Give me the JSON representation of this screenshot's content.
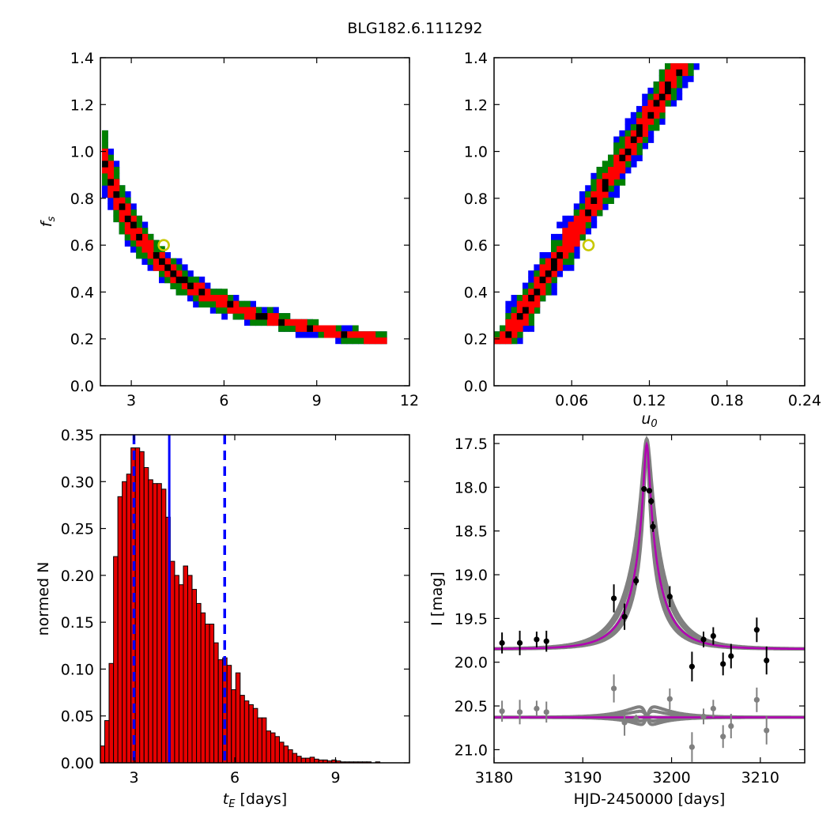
{
  "figure_title": "BLG182.6.111292",
  "colors": {
    "blue": "#0000ff",
    "green": "#008000",
    "red": "#ff0000",
    "black": "#000000",
    "marker": "#c8c800",
    "gray": "#808080",
    "magenta": "#b300b3",
    "bar": "#e60000"
  },
  "chart_data": [
    {
      "type": "heatmap",
      "panel": "top-left",
      "title": "",
      "xlabel": "",
      "ylabel": "f_s",
      "xlim": [
        2,
        12
      ],
      "ylim": [
        0,
        1.4
      ],
      "xticks": [
        "3",
        "6",
        "9",
        "12"
      ],
      "yticks": [
        "0.0",
        "0.2",
        "0.4",
        "0.6",
        "0.8",
        "1.0",
        "1.2",
        "1.4"
      ],
      "relation": "f_s ≈ 1.9 / t_E^0.97 (confidence regions)",
      "regions": [
        "blue",
        "green",
        "red",
        "black"
      ],
      "best_fit": {
        "x": 4.05,
        "y": 0.6
      }
    },
    {
      "type": "heatmap",
      "panel": "top-right",
      "title": "",
      "xlabel": "u_0",
      "ylabel": "",
      "xlim": [
        0,
        0.24
      ],
      "ylim": [
        0,
        1.4
      ],
      "xticks": [
        "0.06",
        "0.12",
        "0.18",
        "0.24"
      ],
      "yticks": [
        "0.0",
        "0.2",
        "0.4",
        "0.6",
        "0.8",
        "1.0",
        "1.2",
        "1.4"
      ],
      "relation": "f_s ≈ 0.13 + 8.6 u_0 (confidence regions)",
      "regions": [
        "blue",
        "green",
        "red",
        "black"
      ],
      "best_fit": {
        "x": 0.073,
        "y": 0.6
      }
    },
    {
      "type": "bar",
      "panel": "bottom-left",
      "title": "",
      "xlabel": "t_E [days]",
      "ylabel": "normed N",
      "xlim": [
        2,
        11.2
      ],
      "ylim": [
        0,
        0.35
      ],
      "xticks": [
        "3",
        "6",
        "9"
      ],
      "yticks": [
        "0.00",
        "0.05",
        "0.10",
        "0.15",
        "0.20",
        "0.25",
        "0.30",
        "0.35"
      ],
      "bin_width": 0.13,
      "bin_start": 2.0,
      "values": [
        0.018,
        0.045,
        0.106,
        0.22,
        0.284,
        0.3,
        0.308,
        0.336,
        0.336,
        0.332,
        0.315,
        0.302,
        0.298,
        0.298,
        0.292,
        0.262,
        0.215,
        0.2,
        0.19,
        0.21,
        0.2,
        0.185,
        0.17,
        0.16,
        0.148,
        0.148,
        0.128,
        0.11,
        0.112,
        0.104,
        0.078,
        0.096,
        0.072,
        0.066,
        0.062,
        0.058,
        0.048,
        0.048,
        0.034,
        0.032,
        0.028,
        0.022,
        0.018,
        0.014,
        0.01,
        0.007,
        0.005,
        0.005,
        0.006,
        0.004,
        0.003,
        0.003,
        0.002,
        0.003,
        0.002,
        0.001,
        0.001,
        0.001,
        0.001,
        0.001,
        0.001,
        0.001,
        0.0,
        0.001,
        0.0,
        0.0,
        0.0,
        0.0,
        0.0,
        0.0
      ],
      "median": 4.05,
      "interval": [
        3.0,
        5.7
      ]
    },
    {
      "type": "scatter",
      "panel": "bottom-right",
      "title": "",
      "xlabel": "HJD-2450000 [days]",
      "ylabel": "I [mag]",
      "xlim": [
        3180,
        3215
      ],
      "ylim": [
        21.15,
        17.4
      ],
      "xticks": [
        "3180",
        "3190",
        "3200",
        "3210"
      ],
      "yticks": [
        "17.5",
        "18.0",
        "18.5",
        "19.0",
        "19.5",
        "20.0",
        "20.5",
        "21.0"
      ],
      "model": {
        "t0": 3197.2,
        "tE": 4.05,
        "u0": 0.073,
        "fs": 0.6,
        "baseline": 19.85
      },
      "series": [
        {
          "points": [
            {
              "x": 3180.9,
              "y": 19.78,
              "err": 0.12
            },
            {
              "x": 3182.9,
              "y": 19.78,
              "err": 0.14
            },
            {
              "x": 3184.8,
              "y": 19.74,
              "err": 0.09
            },
            {
              "x": 3185.9,
              "y": 19.76,
              "err": 0.12
            },
            {
              "x": 3193.5,
              "y": 19.27,
              "err": 0.16
            },
            {
              "x": 3194.7,
              "y": 19.48,
              "err": 0.15
            },
            {
              "x": 3196.0,
              "y": 19.07,
              "err": 0.05
            },
            {
              "x": 3196.9,
              "y": 18.02,
              "err": 0.03
            },
            {
              "x": 3197.5,
              "y": 18.04,
              "err": 0.03
            },
            {
              "x": 3197.7,
              "y": 18.16,
              "err": 0.04
            },
            {
              "x": 3197.9,
              "y": 18.45,
              "err": 0.06
            },
            {
              "x": 3199.8,
              "y": 19.25,
              "err": 0.12
            },
            {
              "x": 3202.3,
              "y": 20.05,
              "err": 0.17
            },
            {
              "x": 3203.6,
              "y": 19.74,
              "err": 0.09
            },
            {
              "x": 3204.7,
              "y": 19.7,
              "err": 0.1
            },
            {
              "x": 3205.8,
              "y": 20.02,
              "err": 0.13
            },
            {
              "x": 3206.7,
              "y": 19.93,
              "err": 0.14
            },
            {
              "x": 3209.6,
              "y": 19.63,
              "err": 0.14
            },
            {
              "x": 3210.7,
              "y": 19.98,
              "err": 0.16
            }
          ]
        },
        {
          "points": [
            {
              "x": 3180.9,
              "y": 20.56,
              "err": 0.12
            },
            {
              "x": 3182.9,
              "y": 20.57,
              "err": 0.14
            },
            {
              "x": 3184.8,
              "y": 20.53,
              "err": 0.09
            },
            {
              "x": 3185.9,
              "y": 20.57,
              "err": 0.12
            },
            {
              "x": 3193.5,
              "y": 20.3,
              "err": 0.16
            },
            {
              "x": 3194.7,
              "y": 20.69,
              "err": 0.15
            },
            {
              "x": 3196.0,
              "y": 20.65,
              "err": 0.05
            },
            {
              "x": 3199.8,
              "y": 20.42,
              "err": 0.12
            },
            {
              "x": 3202.3,
              "y": 20.97,
              "err": 0.17
            },
            {
              "x": 3203.6,
              "y": 20.62,
              "err": 0.09
            },
            {
              "x": 3204.7,
              "y": 20.53,
              "err": 0.1
            },
            {
              "x": 3205.8,
              "y": 20.85,
              "err": 0.13
            },
            {
              "x": 3206.7,
              "y": 20.73,
              "err": 0.14
            },
            {
              "x": 3209.6,
              "y": 20.43,
              "err": 0.14
            },
            {
              "x": 3210.7,
              "y": 20.78,
              "err": 0.16
            }
          ]
        }
      ]
    }
  ]
}
